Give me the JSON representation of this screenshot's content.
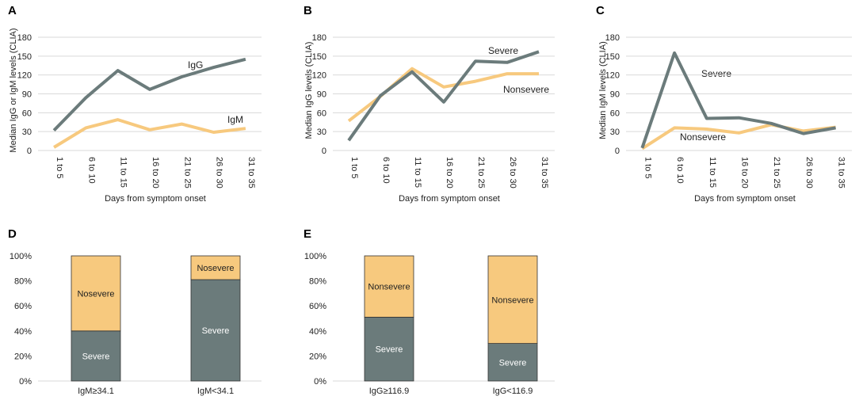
{
  "colors": {
    "severe": "#6b7b7b",
    "nonsevere": "#f7c97e",
    "grid": "#d9d9d9",
    "text": "#222222"
  },
  "chart_data": [
    {
      "panel": "A",
      "type": "line",
      "categories": [
        "1 to 5",
        "6 to 10",
        "11 to 15",
        "16 to 20",
        "21 to 25",
        "26 to 30",
        "31 to 35"
      ],
      "series": [
        {
          "name": "IgG",
          "key": "severe",
          "values": [
            32,
            84,
            127,
            97,
            117,
            132,
            145
          ]
        },
        {
          "name": "IgM",
          "key": "nonsevere",
          "values": [
            5,
            36,
            49,
            33,
            42,
            29,
            35
          ]
        }
      ],
      "xlabel": "Days from symptom onset",
      "ylabel": "Median IgG or IgM levels (CLIA)",
      "yticks": [
        0,
        30,
        60,
        90,
        120,
        150,
        180
      ],
      "ylim": [
        0,
        180
      ]
    },
    {
      "panel": "B",
      "type": "line",
      "categories": [
        "1 to 5",
        "6 to 10",
        "11 to 15",
        "16 to 20",
        "21 to 25",
        "26 to 30",
        "31 to 35"
      ],
      "series": [
        {
          "name": "Severe",
          "key": "severe",
          "values": [
            16,
            87,
            125,
            77,
            142,
            140,
            157
          ]
        },
        {
          "name": "Nonsevere",
          "key": "nonsevere",
          "values": [
            47,
            86,
            130,
            101,
            110,
            122,
            122
          ]
        }
      ],
      "xlabel": "Days from symptom onset",
      "ylabel": "Median IgG levels (CLIA)",
      "yticks": [
        0,
        30,
        60,
        90,
        120,
        150,
        180
      ],
      "ylim": [
        0,
        180
      ]
    },
    {
      "panel": "C",
      "type": "line",
      "categories": [
        "1 to 5",
        "6 to 10",
        "11 to 15",
        "16 to 20",
        "21 to 25",
        "26 to 30",
        "31 to 35"
      ],
      "series": [
        {
          "name": "Severe",
          "key": "severe",
          "values": [
            4,
            155,
            51,
            52,
            43,
            27,
            36
          ]
        },
        {
          "name": "Nonsevere",
          "key": "nonsevere",
          "values": [
            3,
            36,
            34,
            28,
            41,
            31,
            37
          ]
        }
      ],
      "xlabel": "Days from symptom onset",
      "ylabel": "Median IgM levels (CLIA)",
      "yticks": [
        0,
        30,
        60,
        90,
        120,
        150,
        180
      ],
      "ylim": [
        0,
        180
      ]
    },
    {
      "panel": "D",
      "type": "bar",
      "stacked": true,
      "categories": [
        "IgM≥34.1",
        "IgM<34.1"
      ],
      "series": [
        {
          "name": "Severe",
          "key": "severe",
          "values": [
            40,
            81
          ]
        },
        {
          "name": "Nosevere",
          "key": "nonsevere",
          "values": [
            60,
            19
          ]
        }
      ],
      "yticks": [
        "0%",
        "20%",
        "40%",
        "60%",
        "80%",
        "100%"
      ],
      "ylim": [
        0,
        100
      ]
    },
    {
      "panel": "E",
      "type": "bar",
      "stacked": true,
      "categories": [
        "IgG≥116.9",
        "IgG<116.9"
      ],
      "series": [
        {
          "name": "Severe",
          "key": "severe",
          "values": [
            51,
            30
          ]
        },
        {
          "name": "Nonsevere",
          "key": "nonsevere",
          "values": [
            49,
            70
          ]
        }
      ],
      "yticks": [
        "0%",
        "20%",
        "40%",
        "60%",
        "80%",
        "100%"
      ],
      "ylim": [
        0,
        100
      ]
    }
  ]
}
